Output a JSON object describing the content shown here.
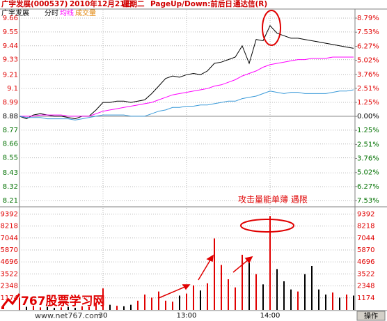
{
  "header": {
    "stock": "广宇发展(000537)",
    "date": "2010年12月21日",
    "weekday": "星期二",
    "hint": "PageUp/Down:前后日",
    "software": "通达信(R)"
  },
  "legend_title": "广宇发展",
  "annotation": "攻击量能单薄  遇限",
  "watermark": {
    "brand": "767股票学习网",
    "url": "www.net767.com"
  },
  "button": "操作",
  "chart_data": [
    {
      "type": "line",
      "x": [
        0,
        5,
        10,
        15,
        20,
        25,
        30,
        35,
        40,
        45,
        50,
        55,
        60,
        65,
        70,
        75,
        80,
        85,
        90,
        95,
        100,
        105,
        110,
        115,
        120,
        125,
        130,
        135,
        140,
        145,
        150,
        155,
        160,
        165,
        170,
        175,
        180,
        185,
        190,
        195,
        200,
        205,
        210,
        215,
        220,
        225,
        230,
        235,
        240
      ],
      "xlim": [
        0,
        240
      ],
      "xticks": [
        {
          "value": 60,
          "label": "30"
        },
        {
          "value": 120,
          "label": "13:00"
        },
        {
          "value": 180,
          "label": "14:00"
        }
      ],
      "ylim": [
        8.21,
        9.66
      ],
      "yticks": [
        9.66,
        9.55,
        9.44,
        9.33,
        9.21,
        9.1,
        8.99,
        8.88,
        8.77,
        8.66,
        8.55,
        8.43,
        8.32,
        8.21
      ],
      "y2lim": [
        -7.53,
        8.79
      ],
      "y2ticks": [
        {
          "value": 8.79,
          "label": "8.79%"
        },
        {
          "value": 7.53,
          "label": "7.53%"
        },
        {
          "value": 6.27,
          "label": "6.27%"
        },
        {
          "value": 5.02,
          "label": "5.02%"
        },
        {
          "value": 3.76,
          "label": "3.76%"
        },
        {
          "value": 2.51,
          "label": "2.51%"
        },
        {
          "value": 1.25,
          "label": "1.25%"
        },
        {
          "value": 0,
          "label": "0.00%"
        },
        {
          "value": -1.25,
          "label": "1.25%"
        },
        {
          "value": -2.51,
          "label": "2.51%"
        },
        {
          "value": -3.76,
          "label": "3.76%"
        },
        {
          "value": -5.02,
          "label": "5.02%"
        },
        {
          "value": -6.27,
          "label": "6.27%"
        },
        {
          "value": -7.53,
          "label": "7.53%"
        }
      ],
      "grid": true,
      "series": [
        {
          "name": "分时",
          "color": "#000000",
          "values": [
            8.88,
            8.86,
            8.89,
            8.9,
            8.89,
            8.88,
            8.88,
            8.87,
            8.86,
            8.88,
            8.88,
            8.93,
            8.99,
            8.99,
            9.0,
            9.0,
            8.99,
            9.0,
            9.01,
            9.06,
            9.12,
            9.18,
            9.2,
            9.19,
            9.21,
            9.22,
            9.21,
            9.24,
            9.3,
            9.31,
            9.33,
            9.35,
            9.44,
            9.3,
            9.49,
            9.48,
            9.6,
            9.54,
            9.52,
            9.5,
            9.5,
            9.49,
            9.48,
            9.47,
            9.46,
            9.45,
            9.44,
            9.43,
            9.42
          ]
        },
        {
          "name": "均线",
          "color": "#ff00ff",
          "values": [
            8.88,
            8.88,
            8.88,
            8.89,
            8.89,
            8.89,
            8.89,
            8.88,
            8.88,
            8.88,
            8.88,
            8.9,
            8.92,
            8.93,
            8.94,
            8.95,
            8.96,
            8.97,
            8.98,
            8.99,
            9.01,
            9.03,
            9.05,
            9.06,
            9.07,
            9.08,
            9.09,
            9.1,
            9.12,
            9.13,
            9.15,
            9.17,
            9.2,
            9.22,
            9.24,
            9.27,
            9.29,
            9.3,
            9.31,
            9.32,
            9.33,
            9.33,
            9.34,
            9.34,
            9.34,
            9.35,
            9.35,
            9.35,
            9.35
          ]
        },
        {
          "color": "#3a9ad9",
          "values": [
            8.88,
            8.87,
            8.87,
            8.87,
            8.86,
            8.86,
            8.86,
            8.86,
            8.85,
            8.86,
            8.87,
            8.88,
            8.89,
            8.89,
            8.89,
            8.89,
            8.88,
            8.88,
            8.88,
            8.9,
            8.92,
            8.93,
            8.95,
            8.95,
            8.96,
            8.96,
            8.97,
            8.97,
            8.98,
            8.99,
            9.0,
            9.0,
            9.02,
            9.03,
            9.04,
            9.06,
            9.08,
            9.07,
            9.06,
            9.07,
            9.07,
            9.06,
            9.06,
            9.06,
            9.06,
            9.07,
            9.08,
            9.08,
            9.09
          ]
        }
      ]
    },
    {
      "type": "bar",
      "name": "成交量",
      "x": [
        0,
        5,
        10,
        15,
        20,
        25,
        30,
        35,
        40,
        45,
        50,
        55,
        60,
        65,
        70,
        75,
        80,
        85,
        90,
        95,
        100,
        105,
        110,
        115,
        120,
        125,
        130,
        135,
        140,
        145,
        150,
        155,
        160,
        165,
        170,
        175,
        180,
        185,
        190,
        195,
        200,
        205,
        210,
        215,
        220,
        225,
        230,
        235,
        240
      ],
      "xlim": [
        0,
        240
      ],
      "ylim": [
        0,
        10100
      ],
      "yticks": [
        9392,
        8218,
        7044,
        5870,
        4696,
        3522,
        2348,
        1174
      ],
      "grid": true,
      "values": [
        1200,
        300,
        400,
        250,
        300,
        200,
        250,
        300,
        200,
        350,
        300,
        600,
        2100,
        500,
        400,
        350,
        500,
        900,
        1500,
        1200,
        1800,
        900,
        800,
        1400,
        1600,
        2400,
        1900,
        2600,
        7000,
        4400,
        3000,
        2200,
        5400,
        5000,
        3500,
        2500,
        9200,
        4000,
        2800,
        2000,
        1800,
        3500,
        4300,
        2000,
        1500,
        1700,
        1200,
        1500,
        1400
      ],
      "colors": [
        "#e00000",
        "#000000",
        "#e00000",
        "#e00000",
        "#000000",
        "#000000",
        "#e00000",
        "#000000",
        "#000000",
        "#e00000",
        "#e00000",
        "#e00000",
        "#e00000",
        "#000000",
        "#e00000",
        "#000000",
        "#000000",
        "#e00000",
        "#e00000",
        "#e00000",
        "#e00000",
        "#e00000",
        "#e00000",
        "#000000",
        "#e00000",
        "#e00000",
        "#000000",
        "#e00000",
        "#e00000",
        "#e00000",
        "#e00000",
        "#e00000",
        "#e00000",
        "#000000",
        "#e00000",
        "#000000",
        "#e00000",
        "#000000",
        "#000000",
        "#000000",
        "#e00000",
        "#000000",
        "#000000",
        "#000000",
        "#000000",
        "#e00000",
        "#000000",
        "#e00000",
        "#000000"
      ]
    }
  ]
}
